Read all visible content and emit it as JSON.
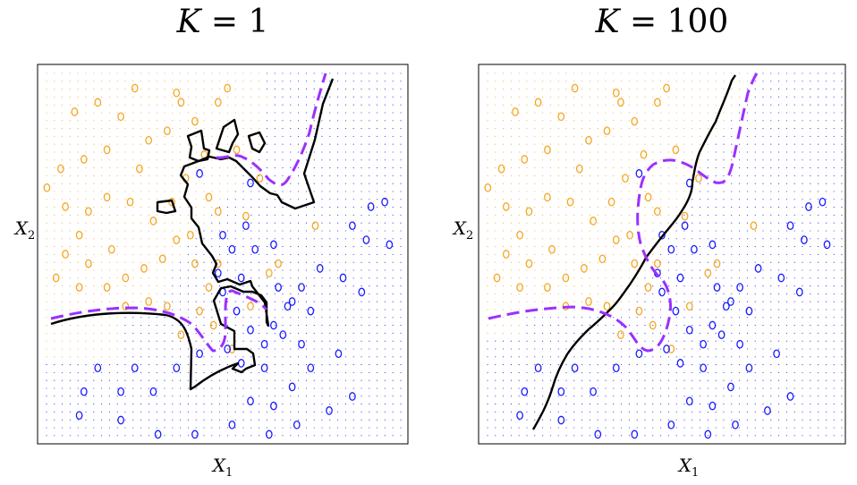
{
  "chart_data": [
    {
      "type": "scatter",
      "title": "K = 1",
      "title_var": "K",
      "title_eq": "= 1",
      "xlabel": "X1",
      "ylabel": "X2",
      "xlim": [
        -2,
        2
      ],
      "ylim": [
        -2,
        2
      ],
      "grid": "background dot grid colored by predicted class",
      "colors": {
        "class_a": "#f5a623",
        "class_b": "#1a1aff",
        "bayes_boundary": "#9b30ff",
        "knn_boundary": "#000000"
      },
      "series": [
        {
          "class": "orange",
          "points": [
            [
              -1.6,
              1.5
            ],
            [
              -1.35,
              1.6
            ],
            [
              -1.1,
              1.45
            ],
            [
              -0.95,
              1.75
            ],
            [
              -0.5,
              1.7
            ],
            [
              -0.45,
              1.6
            ],
            [
              -0.3,
              1.4
            ],
            [
              0.05,
              1.75
            ],
            [
              -0.05,
              1.6
            ],
            [
              -0.8,
              1.2
            ],
            [
              -0.6,
              1.3
            ],
            [
              -1.25,
              1.1
            ],
            [
              -1.5,
              1.0
            ],
            [
              -1.75,
              0.9
            ],
            [
              -1.9,
              0.7
            ],
            [
              -1.7,
              0.5
            ],
            [
              -1.45,
              0.45
            ],
            [
              -1.25,
              0.6
            ],
            [
              -1.0,
              0.55
            ],
            [
              -0.75,
              0.35
            ],
            [
              -0.55,
              0.55
            ],
            [
              -0.4,
              0.8
            ],
            [
              -0.2,
              1.05
            ],
            [
              -0.15,
              0.6
            ],
            [
              -0.05,
              0.45
            ],
            [
              0.25,
              0.4
            ],
            [
              0.4,
              0.8
            ],
            [
              0.15,
              1.1
            ],
            [
              -1.55,
              0.2
            ],
            [
              -1.7,
              0.0
            ],
            [
              -1.45,
              -0.1
            ],
            [
              -1.2,
              0.05
            ],
            [
              -1.05,
              -0.25
            ],
            [
              -0.85,
              -0.15
            ],
            [
              -0.65,
              -0.05
            ],
            [
              -0.5,
              0.15
            ],
            [
              -0.3,
              -0.1
            ],
            [
              -0.15,
              -0.35
            ],
            [
              -0.05,
              -0.1
            ],
            [
              -0.25,
              -0.6
            ],
            [
              -0.45,
              -0.85
            ],
            [
              -0.6,
              -0.55
            ],
            [
              -0.8,
              -0.5
            ],
            [
              -1.05,
              -0.55
            ],
            [
              -1.25,
              -0.35
            ],
            [
              -1.55,
              -0.35
            ],
            [
              -1.8,
              -0.25
            ],
            [
              -0.1,
              -0.75
            ],
            [
              0.1,
              -1.0
            ],
            [
              0.3,
              -0.55
            ],
            [
              0.5,
              -0.2
            ],
            [
              0.6,
              -0.1
            ],
            [
              1.0,
              0.3
            ],
            [
              -0.35,
              0.2
            ],
            [
              -0.9,
              0.9
            ]
          ]
        },
        {
          "class": "blue",
          "points": [
            [
              1.6,
              0.5
            ],
            [
              1.75,
              0.55
            ],
            [
              1.4,
              0.3
            ],
            [
              1.55,
              0.15
            ],
            [
              1.8,
              0.1
            ],
            [
              1.3,
              -0.25
            ],
            [
              1.5,
              -0.4
            ],
            [
              1.05,
              -0.15
            ],
            [
              0.85,
              -0.35
            ],
            [
              0.7,
              -0.55
            ],
            [
              0.55,
              -0.75
            ],
            [
              0.45,
              -0.95
            ],
            [
              0.3,
              -0.8
            ],
            [
              0.15,
              -0.6
            ],
            [
              0.0,
              -0.4
            ],
            [
              0.2,
              -0.25
            ],
            [
              0.35,
              0.05
            ],
            [
              0.55,
              0.1
            ],
            [
              0.75,
              -0.5
            ],
            [
              0.95,
              -0.6
            ],
            [
              0.65,
              -0.85
            ],
            [
              0.85,
              -0.95
            ],
            [
              0.45,
              -1.2
            ],
            [
              0.2,
              -1.15
            ],
            [
              0.05,
              -1.0
            ],
            [
              -0.25,
              -1.05
            ],
            [
              -0.5,
              -1.2
            ],
            [
              -0.75,
              -1.45
            ],
            [
              -0.95,
              -1.2
            ],
            [
              -1.1,
              -1.45
            ],
            [
              -1.35,
              -1.2
            ],
            [
              -1.5,
              -1.45
            ],
            [
              -1.55,
              -1.7
            ],
            [
              -1.1,
              -1.75
            ],
            [
              -0.7,
              -1.9
            ],
            [
              -0.3,
              -1.9
            ],
            [
              0.1,
              -1.8
            ],
            [
              0.3,
              -1.55
            ],
            [
              0.55,
              -1.6
            ],
            [
              0.75,
              -1.4
            ],
            [
              0.95,
              -1.2
            ],
            [
              1.25,
              -1.05
            ],
            [
              1.4,
              -1.5
            ],
            [
              1.15,
              -1.65
            ],
            [
              0.8,
              -1.8
            ],
            [
              0.5,
              -1.9
            ],
            [
              0.25,
              0.3
            ],
            [
              0.0,
              0.2
            ],
            [
              -0.25,
              0.85
            ],
            [
              0.3,
              0.75
            ],
            [
              0.1,
              0.05
            ],
            [
              0.6,
              -0.35
            ],
            [
              -0.05,
              -0.2
            ]
          ]
        }
      ],
      "panel": "left"
    },
    {
      "type": "scatter",
      "title": "K = 100",
      "title_var": "K",
      "title_eq": "= 100",
      "xlabel": "X1",
      "ylabel": "X2",
      "xlim": [
        -2,
        2
      ],
      "ylim": [
        -2,
        2
      ],
      "grid": "background dot grid colored by predicted class",
      "colors": {
        "class_a": "#f5a623",
        "class_b": "#1a1aff",
        "bayes_boundary": "#9b30ff",
        "knn_boundary": "#000000"
      },
      "series": [
        {
          "class": "orange",
          "points": [
            [
              -1.6,
              1.5
            ],
            [
              -1.35,
              1.6
            ],
            [
              -1.1,
              1.45
            ],
            [
              -0.95,
              1.75
            ],
            [
              -0.5,
              1.7
            ],
            [
              -0.45,
              1.6
            ],
            [
              -0.3,
              1.4
            ],
            [
              0.05,
              1.75
            ],
            [
              -0.05,
              1.6
            ],
            [
              -0.8,
              1.2
            ],
            [
              -0.6,
              1.3
            ],
            [
              -1.25,
              1.1
            ],
            [
              -1.5,
              1.0
            ],
            [
              -1.75,
              0.9
            ],
            [
              -1.9,
              0.7
            ],
            [
              -1.7,
              0.5
            ],
            [
              -1.45,
              0.45
            ],
            [
              -1.25,
              0.6
            ],
            [
              -1.0,
              0.55
            ],
            [
              -0.75,
              0.35
            ],
            [
              -0.55,
              0.55
            ],
            [
              -0.4,
              0.8
            ],
            [
              -0.2,
              1.05
            ],
            [
              -0.15,
              0.6
            ],
            [
              -0.05,
              0.45
            ],
            [
              0.25,
              0.4
            ],
            [
              0.4,
              0.8
            ],
            [
              0.15,
              1.1
            ],
            [
              -1.55,
              0.2
            ],
            [
              -1.7,
              0.0
            ],
            [
              -1.45,
              -0.1
            ],
            [
              -1.2,
              0.05
            ],
            [
              -1.05,
              -0.25
            ],
            [
              -0.85,
              -0.15
            ],
            [
              -0.65,
              -0.05
            ],
            [
              -0.5,
              0.15
            ],
            [
              -0.3,
              -0.1
            ],
            [
              -0.15,
              -0.35
            ],
            [
              -0.05,
              -0.1
            ],
            [
              -0.25,
              -0.6
            ],
            [
              -0.45,
              -0.85
            ],
            [
              -0.6,
              -0.55
            ],
            [
              -0.8,
              -0.5
            ],
            [
              -1.05,
              -0.55
            ],
            [
              -1.25,
              -0.35
            ],
            [
              -1.55,
              -0.35
            ],
            [
              -1.8,
              -0.25
            ],
            [
              -0.1,
              -0.75
            ],
            [
              0.1,
              -1.0
            ],
            [
              0.3,
              -0.55
            ],
            [
              0.5,
              -0.2
            ],
            [
              0.6,
              -0.1
            ],
            [
              1.0,
              0.3
            ],
            [
              -0.35,
              0.2
            ],
            [
              -0.9,
              0.9
            ]
          ]
        },
        {
          "class": "blue",
          "points": [
            [
              1.6,
              0.5
            ],
            [
              1.75,
              0.55
            ],
            [
              1.4,
              0.3
            ],
            [
              1.55,
              0.15
            ],
            [
              1.8,
              0.1
            ],
            [
              1.3,
              -0.25
            ],
            [
              1.5,
              -0.4
            ],
            [
              1.05,
              -0.15
            ],
            [
              0.85,
              -0.35
            ],
            [
              0.7,
              -0.55
            ],
            [
              0.55,
              -0.75
            ],
            [
              0.45,
              -0.95
            ],
            [
              0.3,
              -0.8
            ],
            [
              0.15,
              -0.6
            ],
            [
              0.0,
              -0.4
            ],
            [
              0.2,
              -0.25
            ],
            [
              0.35,
              0.05
            ],
            [
              0.55,
              0.1
            ],
            [
              0.75,
              -0.5
            ],
            [
              0.95,
              -0.6
            ],
            [
              0.65,
              -0.85
            ],
            [
              0.85,
              -0.95
            ],
            [
              0.45,
              -1.2
            ],
            [
              0.2,
              -1.15
            ],
            [
              0.05,
              -1.0
            ],
            [
              -0.25,
              -1.05
            ],
            [
              -0.5,
              -1.2
            ],
            [
              -0.75,
              -1.45
            ],
            [
              -0.95,
              -1.2
            ],
            [
              -1.1,
              -1.45
            ],
            [
              -1.35,
              -1.2
            ],
            [
              -1.5,
              -1.45
            ],
            [
              -1.55,
              -1.7
            ],
            [
              -1.1,
              -1.75
            ],
            [
              -0.7,
              -1.9
            ],
            [
              -0.3,
              -1.9
            ],
            [
              0.1,
              -1.8
            ],
            [
              0.3,
              -1.55
            ],
            [
              0.55,
              -1.6
            ],
            [
              0.75,
              -1.4
            ],
            [
              0.95,
              -1.2
            ],
            [
              1.25,
              -1.05
            ],
            [
              1.4,
              -1.5
            ],
            [
              1.15,
              -1.65
            ],
            [
              0.8,
              -1.8
            ],
            [
              0.5,
              -1.9
            ],
            [
              0.25,
              0.3
            ],
            [
              0.0,
              0.2
            ],
            [
              -0.25,
              0.85
            ],
            [
              0.3,
              0.75
            ],
            [
              0.1,
              0.05
            ],
            [
              0.6,
              -0.35
            ],
            [
              -0.05,
              -0.2
            ]
          ]
        }
      ],
      "panel": "right"
    }
  ]
}
